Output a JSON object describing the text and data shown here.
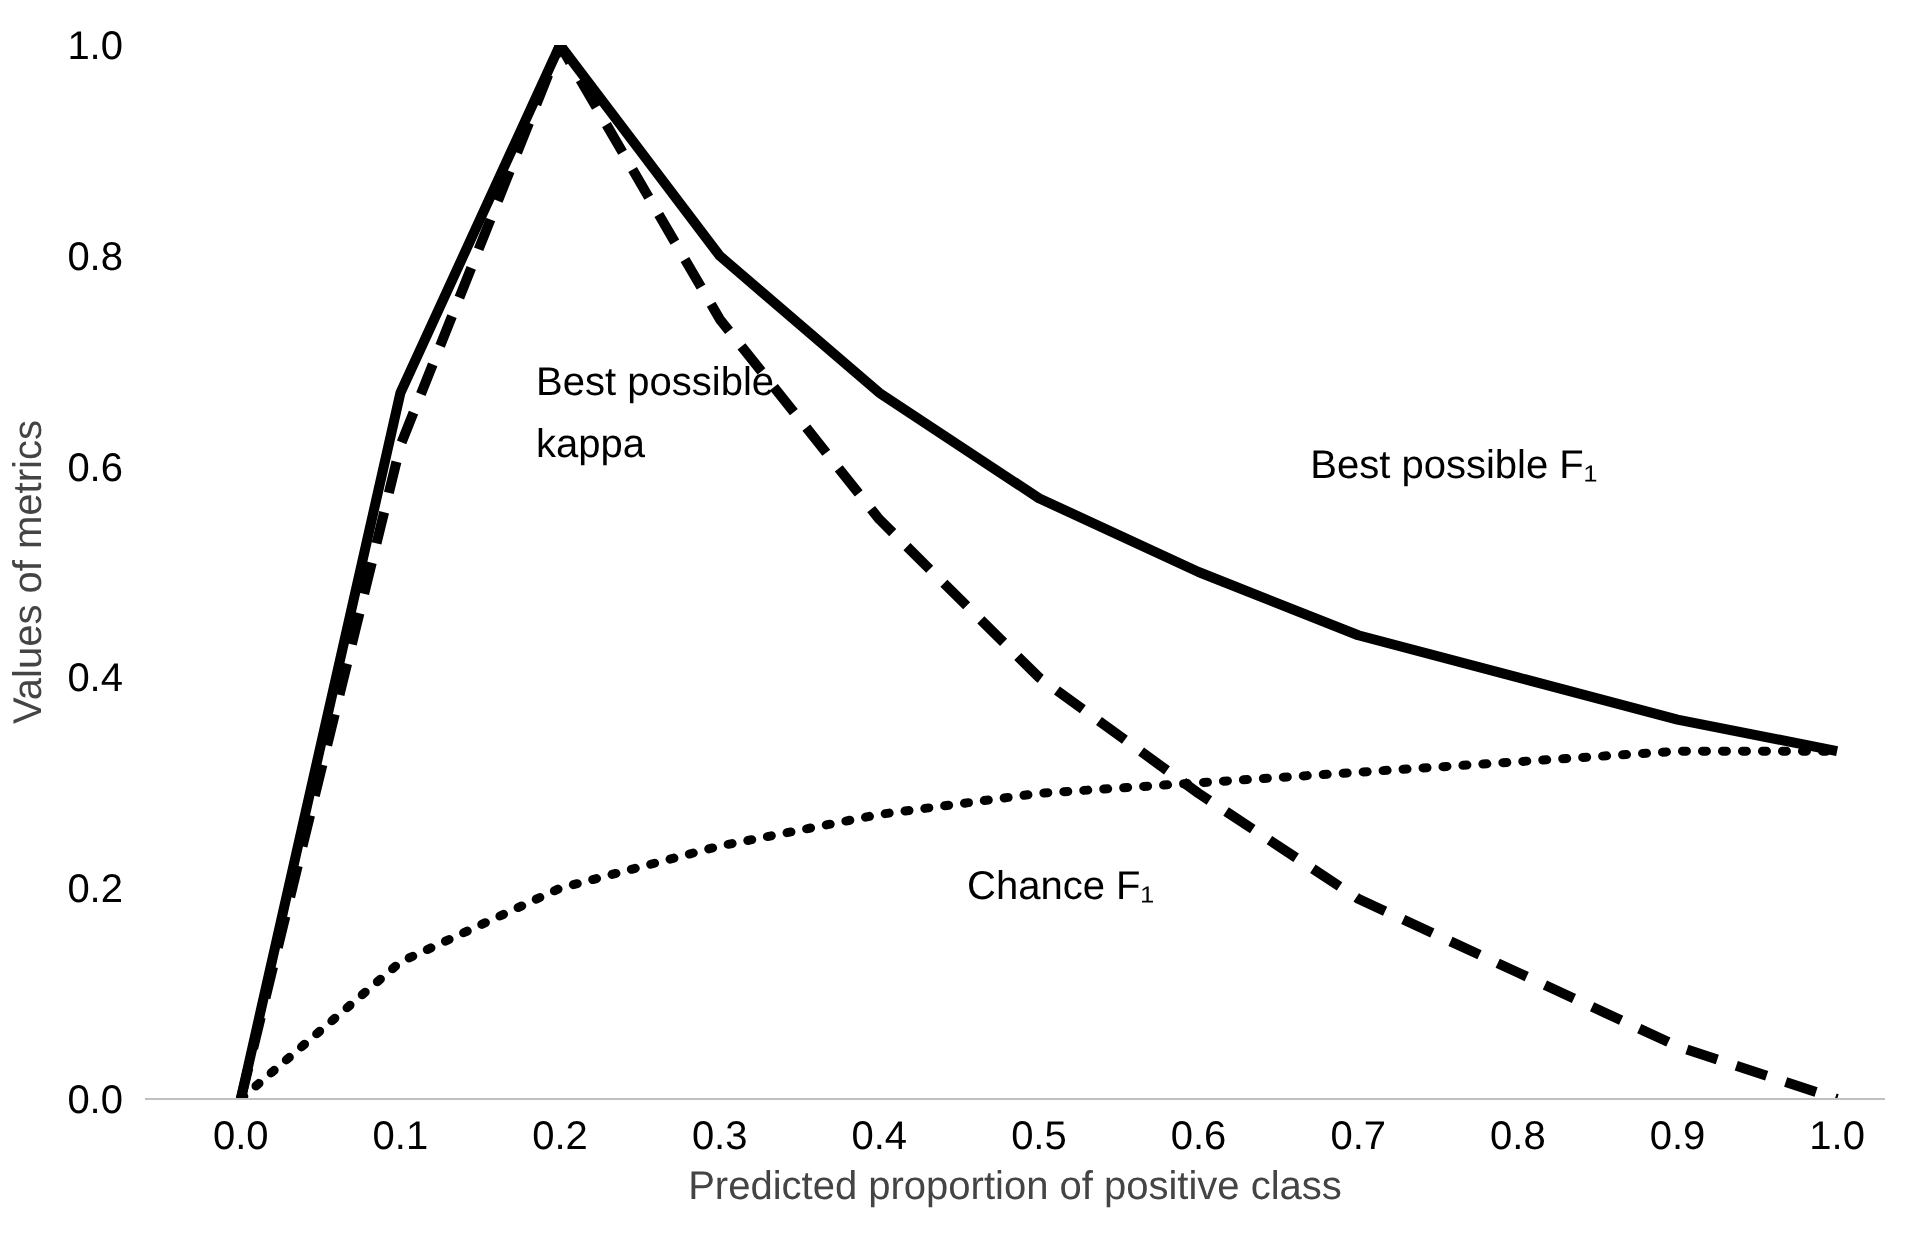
{
  "chart_data": {
    "type": "line",
    "xlabel": "Predicted proportion of positive class",
    "ylabel": "Values of metrics",
    "x": [
      0.0,
      0.1,
      0.2,
      0.3,
      0.4,
      0.5,
      0.6,
      0.7,
      0.8,
      0.9,
      1.0
    ],
    "series": [
      {
        "name": "Best possible F₁",
        "color": "#000000",
        "line_style": "solid",
        "values": [
          0.0,
          0.67,
          1.0,
          0.8,
          0.67,
          0.57,
          0.5,
          0.44,
          0.4,
          0.36,
          0.33
        ]
      },
      {
        "name": "Best possible kappa",
        "color": "#000000",
        "line_style": "dashed",
        "values": [
          0.0,
          0.62,
          1.0,
          0.74,
          0.55,
          0.4,
          0.29,
          0.19,
          0.12,
          0.05,
          0.0
        ]
      },
      {
        "name": "Chance F₁",
        "color": "#000000",
        "line_style": "dotted",
        "values": [
          0.0,
          0.13,
          0.2,
          0.24,
          0.27,
          0.29,
          0.3,
          0.31,
          0.32,
          0.33,
          0.33
        ]
      }
    ],
    "xlim": [
      -0.06,
      1.03
    ],
    "ylim": [
      0.0,
      1.0
    ],
    "xticks": [
      {
        "value": 0.0,
        "label": "0.0"
      },
      0.1,
      0.2,
      0.3,
      0.4,
      0.5,
      0.6,
      0.7,
      0.8,
      0.9,
      {
        "value": 1.0,
        "label": "1.0"
      }
    ],
    "yticks": [
      {
        "value": 0.0,
        "label": "0.0"
      },
      0.2,
      0.4,
      0.6,
      0.8,
      {
        "value": 1.0,
        "label": "1.0"
      }
    ],
    "marker": "none"
  }
}
